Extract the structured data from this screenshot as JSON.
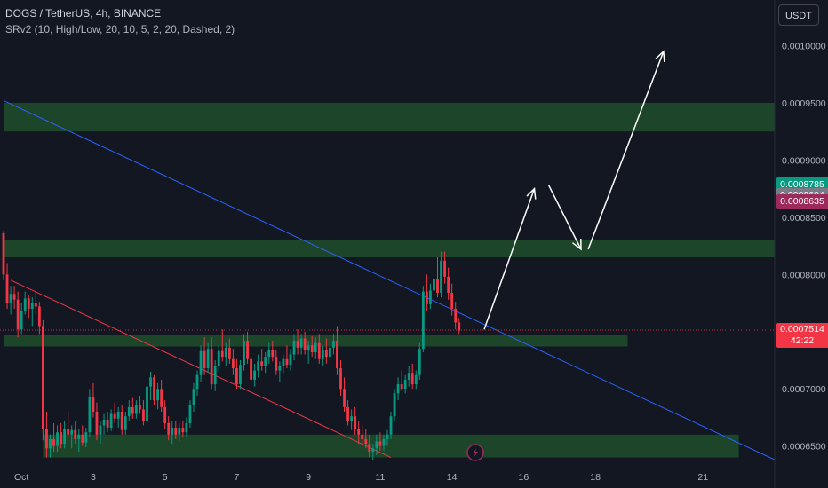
{
  "header": {
    "title": "DOGS / TetherUS, 4h, BINANCE",
    "indicator": "SRv2 (10, High/Low, 20, 10, 5, 2, 20, Dashed, 2)"
  },
  "toolbar": {
    "currency": "USDT"
  },
  "colors": {
    "up": "#089981",
    "down": "#f23645",
    "zone": "#1e4d2b",
    "trend_blue": "#2962ff",
    "trend_red": "#f23645",
    "arrow": "#ffffff"
  },
  "chart_data": {
    "type": "candlestick",
    "symbol": "DOGS / TetherUS",
    "interval": "4h",
    "exchange": "BINANCE",
    "ylim": [
      0.000635,
      0.00104
    ],
    "y_ticks": [
      "0.0006500",
      "0.0007000",
      "0.0007500",
      "0.0008000",
      "0.0008500",
      "0.0009000",
      "0.0009500",
      "0.0010000"
    ],
    "x_ticks": [
      {
        "i": 5,
        "label": "Oct"
      },
      {
        "i": 25,
        "label": "3"
      },
      {
        "i": 45,
        "label": "5"
      },
      {
        "i": 65,
        "label": "7"
      },
      {
        "i": 85,
        "label": "9"
      },
      {
        "i": 105,
        "label": "11"
      },
      {
        "i": 125,
        "label": "14"
      },
      {
        "i": 145,
        "label": "16"
      },
      {
        "i": 165,
        "label": "18"
      },
      {
        "i": 195,
        "label": "21"
      }
    ],
    "last_index": 132,
    "x_max": 215,
    "candles": [
      [
        0.000836,
        0.000838,
        0.000795,
        0.0008
      ],
      [
        0.0008,
        0.00081,
        0.00077,
        0.000775
      ],
      [
        0.000775,
        0.00079,
        0.000765,
        0.000783
      ],
      [
        0.000783,
        0.00079,
        0.00077,
        0.000778
      ],
      [
        0.000778,
        0.000785,
        0.000745,
        0.000752
      ],
      [
        0.000752,
        0.000775,
        0.000748,
        0.000768
      ],
      [
        0.000768,
        0.000785,
        0.000765,
        0.000779
      ],
      [
        0.000779,
        0.000782,
        0.000762,
        0.00077
      ],
      [
        0.00077,
        0.00078,
        0.000755,
        0.000775
      ],
      [
        0.000775,
        0.000785,
        0.000765,
        0.000772
      ],
      [
        0.000772,
        0.000776,
        0.000748,
        0.000755
      ],
      [
        0.000755,
        0.00076,
        0.000655,
        0.000665
      ],
      [
        0.000665,
        0.00068,
        0.00064,
        0.000648
      ],
      [
        0.000648,
        0.00066,
        0.00064,
        0.000656
      ],
      [
        0.000656,
        0.00067,
        0.000645,
        0.00065
      ],
      [
        0.00065,
        0.000668,
        0.000645,
        0.000662
      ],
      [
        0.000662,
        0.00067,
        0.000648,
        0.000652
      ],
      [
        0.000652,
        0.000672,
        0.000648,
        0.000665
      ],
      [
        0.000665,
        0.00068,
        0.000658,
        0.00066
      ],
      [
        0.00066,
        0.000668,
        0.000648,
        0.000664
      ],
      [
        0.000664,
        0.000672,
        0.000652,
        0.000656
      ],
      [
        0.000656,
        0.000665,
        0.000645,
        0.00066
      ],
      [
        0.00066,
        0.000668,
        0.00065,
        0.000653
      ],
      [
        0.000653,
        0.000666,
        0.000649,
        0.000662
      ],
      [
        0.000662,
        0.0007,
        0.000658,
        0.000693
      ],
      [
        0.000693,
        0.000705,
        0.000675,
        0.00068
      ],
      [
        0.00068,
        0.000688,
        0.000655,
        0.00066
      ],
      [
        0.00066,
        0.000672,
        0.000652,
        0.000668
      ],
      [
        0.000668,
        0.000678,
        0.00066,
        0.000673
      ],
      [
        0.000673,
        0.00068,
        0.000662,
        0.000666
      ],
      [
        0.000666,
        0.000682,
        0.000663,
        0.000678
      ],
      [
        0.000678,
        0.000688,
        0.00067,
        0.000674
      ],
      [
        0.000674,
        0.000684,
        0.000666,
        0.00068
      ],
      [
        0.00068,
        0.000686,
        0.00066,
        0.000664
      ],
      [
        0.000664,
        0.00068,
        0.00066,
        0.000676
      ],
      [
        0.000676,
        0.00069,
        0.000672,
        0.000684
      ],
      [
        0.000684,
        0.000692,
        0.000674,
        0.000678
      ],
      [
        0.000678,
        0.00069,
        0.000674,
        0.000686
      ],
      [
        0.000686,
        0.000694,
        0.000678,
        0.000682
      ],
      [
        0.000682,
        0.00069,
        0.000668,
        0.000672
      ],
      [
        0.000672,
        0.000708,
        0.000668,
        0.000702
      ],
      [
        0.000702,
        0.000715,
        0.00069,
        0.00071
      ],
      [
        0.00071,
        0.000712,
        0.000686,
        0.00069
      ],
      [
        0.00069,
        0.000705,
        0.000682,
        0.0007
      ],
      [
        0.0007,
        0.000708,
        0.00068,
        0.000684
      ],
      [
        0.000684,
        0.00069,
        0.000665,
        0.00067
      ],
      [
        0.00067,
        0.000676,
        0.000655,
        0.00066
      ],
      [
        0.00066,
        0.000672,
        0.000652,
        0.000666
      ],
      [
        0.000666,
        0.000672,
        0.000656,
        0.00066
      ],
      [
        0.00066,
        0.00067,
        0.000654,
        0.000666
      ],
      [
        0.000666,
        0.000672,
        0.000658,
        0.000662
      ],
      [
        0.000662,
        0.000675,
        0.000658,
        0.00067
      ],
      [
        0.00067,
        0.00069,
        0.000666,
        0.000686
      ],
      [
        0.000686,
        0.000705,
        0.00068,
        0.0007
      ],
      [
        0.0007,
        0.000716,
        0.000694,
        0.000712
      ],
      [
        0.000712,
        0.000738,
        0.000706,
        0.000733
      ],
      [
        0.000733,
        0.000745,
        0.000712,
        0.000718
      ],
      [
        0.000718,
        0.00074,
        0.000714,
        0.000735
      ],
      [
        0.000735,
        0.000745,
        0.0007,
        0.000704
      ],
      [
        0.000704,
        0.000725,
        0.000698,
        0.00072
      ],
      [
        0.00072,
        0.000738,
        0.000715,
        0.000733
      ],
      [
        0.000733,
        0.000752,
        0.000724,
        0.000728
      ],
      [
        0.000728,
        0.00074,
        0.00072,
        0.000736
      ],
      [
        0.000736,
        0.000744,
        0.000722,
        0.000726
      ],
      [
        0.000726,
        0.000735,
        0.000712,
        0.000718
      ],
      [
        0.000718,
        0.000726,
        0.0007,
        0.000704
      ],
      [
        0.000704,
        0.000725,
        0.0007,
        0.000721
      ],
      [
        0.000721,
        0.000748,
        0.000716,
        0.000742
      ],
      [
        0.000742,
        0.00075,
        0.000722,
        0.000726
      ],
      [
        0.000726,
        0.000732,
        0.000704,
        0.000708
      ],
      [
        0.000708,
        0.000722,
        0.000702,
        0.000716
      ],
      [
        0.000716,
        0.00073,
        0.00071,
        0.000724
      ],
      [
        0.000724,
        0.000735,
        0.000716,
        0.00072
      ],
      [
        0.00072,
        0.000732,
        0.000714,
        0.000728
      ],
      [
        0.000728,
        0.00074,
        0.000722,
        0.000734
      ],
      [
        0.000734,
        0.000742,
        0.000724,
        0.000728
      ],
      [
        0.000728,
        0.000734,
        0.000712,
        0.000716
      ],
      [
        0.000716,
        0.000724,
        0.000706,
        0.00072
      ],
      [
        0.00072,
        0.00073,
        0.000714,
        0.000726
      ],
      [
        0.000726,
        0.000738,
        0.000718,
        0.000721
      ],
      [
        0.000721,
        0.000735,
        0.000716,
        0.00073
      ],
      [
        0.00073,
        0.000748,
        0.000725,
        0.000742
      ],
      [
        0.000742,
        0.000752,
        0.00073,
        0.000736
      ],
      [
        0.000736,
        0.000748,
        0.00073,
        0.000744
      ],
      [
        0.000744,
        0.00075,
        0.00073,
        0.000734
      ],
      [
        0.000734,
        0.000742,
        0.000722,
        0.000738
      ],
      [
        0.000738,
        0.000746,
        0.000728,
        0.000732
      ],
      [
        0.000732,
        0.000745,
        0.000726,
        0.00074
      ],
      [
        0.00074,
        0.000748,
        0.000722,
        0.000726
      ],
      [
        0.000726,
        0.000738,
        0.00072,
        0.000734
      ],
      [
        0.000734,
        0.000744,
        0.000722,
        0.000728
      ],
      [
        0.000728,
        0.000742,
        0.000724,
        0.000736
      ],
      [
        0.000736,
        0.000748,
        0.00073,
        0.000742
      ],
      [
        0.000742,
        0.000755,
        0.000712,
        0.000718
      ],
      [
        0.000718,
        0.000725,
        0.000694,
        0.0007
      ],
      [
        0.0007,
        0.00071,
        0.00068,
        0.000684
      ],
      [
        0.000684,
        0.00069,
        0.000668,
        0.000672
      ],
      [
        0.000672,
        0.000682,
        0.000664,
        0.000676
      ],
      [
        0.000676,
        0.000684,
        0.00066,
        0.000665
      ],
      [
        0.000665,
        0.000672,
        0.000652,
        0.00066
      ],
      [
        0.00066,
        0.000668,
        0.00065,
        0.000656
      ],
      [
        0.000656,
        0.000665,
        0.000648,
        0.000652
      ],
      [
        0.000652,
        0.00066,
        0.00064,
        0.000645
      ],
      [
        0.000645,
        0.000652,
        0.000638,
        0.000648
      ],
      [
        0.000648,
        0.00066,
        0.000642,
        0.000654
      ],
      [
        0.000654,
        0.000662,
        0.000646,
        0.00065
      ],
      [
        0.00065,
        0.00066,
        0.000646,
        0.000656
      ],
      [
        0.000656,
        0.000664,
        0.00065,
        0.00066
      ],
      [
        0.00066,
        0.00068,
        0.000656,
        0.000676
      ],
      [
        0.000676,
        0.0007,
        0.000672,
        0.000696
      ],
      [
        0.000696,
        0.00071,
        0.00069,
        0.000704
      ],
      [
        0.000704,
        0.000716,
        0.000698,
        0.0007
      ],
      [
        0.0007,
        0.000712,
        0.000696,
        0.000708
      ],
      [
        0.000708,
        0.00072,
        0.000702,
        0.000714
      ],
      [
        0.000714,
        0.000722,
        0.0007,
        0.000704
      ],
      [
        0.000704,
        0.000716,
        0.0007,
        0.000712
      ],
      [
        0.000712,
        0.00074,
        0.000708,
        0.000735
      ],
      [
        0.000735,
        0.00079,
        0.000732,
        0.000785
      ],
      [
        0.000785,
        0.0008,
        0.000768,
        0.000774
      ],
      [
        0.000774,
        0.000792,
        0.00077,
        0.000786
      ],
      [
        0.000786,
        0.000835,
        0.00078,
        0.000796
      ],
      [
        0.000796,
        0.000815,
        0.00078,
        0.000784
      ],
      [
        0.000784,
        0.00082,
        0.00078,
        0.000812
      ],
      [
        0.000812,
        0.00082,
        0.000792,
        0.000798
      ],
      [
        0.000798,
        0.000806,
        0.000778,
        0.000784
      ],
      [
        0.000784,
        0.000792,
        0.000764,
        0.00077
      ],
      [
        0.00077,
        0.000776,
        0.000752,
        0.000758
      ],
      [
        0.000758,
        0.000762,
        0.000748,
        0.000751
      ]
    ],
    "zones": [
      {
        "from": 0.000925,
        "to": 0.00095,
        "x1": 0,
        "x2": 215
      },
      {
        "from": 0.000815,
        "to": 0.00083,
        "x1": 0,
        "x2": 215
      },
      {
        "from": 0.000737,
        "to": 0.000747,
        "x1": 0,
        "x2": 174
      },
      {
        "from": 0.00064,
        "to": 0.00066,
        "x1": 11,
        "x2": 205
      }
    ],
    "trendlines": [
      {
        "color": "trend_blue",
        "points": [
          [
            0,
            0.000952
          ],
          [
            215,
            0.000638
          ]
        ]
      },
      {
        "color": "trend_red",
        "points": [
          [
            2,
            0.000795
          ],
          [
            108,
            0.00064
          ]
        ]
      }
    ],
    "projection_path": [
      [
        134,
        0.000752
      ],
      [
        148,
        0.000875
      ],
      [
        152,
        0.000878
      ],
      [
        161,
        0.000822
      ],
      [
        163,
        0.000822
      ],
      [
        184,
        0.000995
      ]
    ],
    "price_labels": [
      {
        "value": 0.0008785,
        "text": "0.0008785",
        "color": "#089981"
      },
      {
        "value": 0.0008694,
        "text": "0.0008694",
        "color": "#787b86"
      },
      {
        "value": 0.0008635,
        "text": "0.0008635",
        "color": "#9c2a5a"
      }
    ],
    "current_price": {
      "value": 0.0007514,
      "text": "0.0007514",
      "countdown": "42:22",
      "color": "#f23645"
    }
  }
}
